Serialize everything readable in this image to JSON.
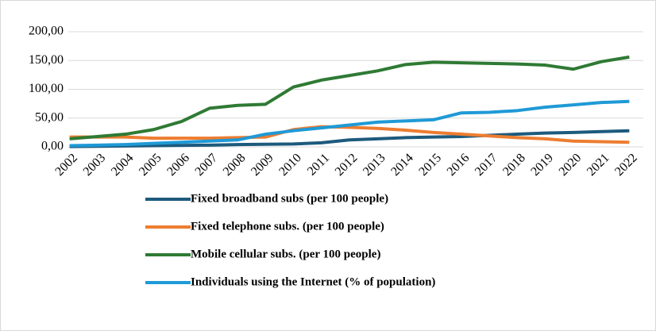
{
  "chart_data": {
    "type": "line",
    "categories": [
      "2002",
      "2003",
      "2004",
      "2005",
      "2006",
      "2007",
      "2008",
      "2009",
      "2010",
      "2011",
      "2012",
      "2013",
      "2014",
      "2015",
      "2016",
      "2017",
      "2018",
      "2019",
      "2020",
      "2021",
      "2022"
    ],
    "series": [
      {
        "name": "Fixed broadband subs (per 100 people)",
        "color": "#1d5a7d",
        "values": [
          0.5,
          1,
          1.5,
          2,
          2.5,
          3,
          4,
          4.5,
          5,
          7,
          12,
          14,
          16,
          17,
          18,
          20,
          22,
          24,
          25,
          26.5,
          28
        ]
      },
      {
        "name": "Fixed telephone subs. (per 100 people)",
        "color": "#ed7d31",
        "values": [
          17,
          17,
          17,
          15,
          15,
          15,
          16,
          17,
          30,
          35,
          34,
          32,
          29,
          25,
          22,
          19,
          16,
          14,
          10,
          9,
          8
        ]
      },
      {
        "name": "Mobile cellular subs. (per 100 people)",
        "color": "#2f7a34",
        "values": [
          14,
          18,
          22,
          30,
          44,
          67,
          72,
          74,
          104,
          116,
          124,
          132,
          143,
          147,
          146,
          145,
          144,
          142,
          135,
          148,
          156
        ]
      },
      {
        "name": "Individuals using the Internet (% of population)",
        "color": "#1f9ad6",
        "values": [
          2,
          3,
          4,
          6,
          8,
          10,
          12,
          22,
          28,
          33,
          38,
          43,
          45,
          47,
          59,
          60,
          63,
          69,
          73,
          77,
          79
        ]
      }
    ],
    "ylim": [
      0,
      200
    ],
    "yticks": [
      {
        "value": 0,
        "label": "0,00"
      },
      {
        "value": 50,
        "label": "50,00"
      },
      {
        "value": 100,
        "label": "100,00"
      },
      {
        "value": 150,
        "label": "150,00"
      },
      {
        "value": 200,
        "label": "200,00"
      }
    ],
    "grid": true,
    "legend": "bottom"
  }
}
